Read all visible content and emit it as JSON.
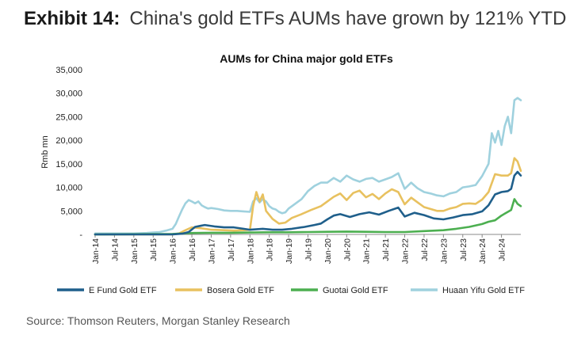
{
  "header": {
    "exhibit_label": "Exhibit 14:",
    "title": "China's gold ETFs AUMs have grown by 121% YTD"
  },
  "source": "Source: Thomson Reuters, Morgan Stanley Research",
  "chart_data": {
    "type": "line",
    "title": "AUMs for China major gold ETFs",
    "xlabel": "",
    "ylabel": "Rmb mn",
    "ylim": [
      0,
      35000
    ],
    "yticks": [
      0,
      5000,
      10000,
      15000,
      20000,
      25000,
      30000,
      35000
    ],
    "ytick_labels": [
      "-",
      "5,000",
      "10,000",
      "15,000",
      "20,000",
      "25,000",
      "30,000",
      "35,000"
    ],
    "x_tick_labels": [
      "Jan-14",
      "Jul-14",
      "Jan-15",
      "Jul-15",
      "Jan-16",
      "Jul-16",
      "Jan-17",
      "Jul-17",
      "Jan-18",
      "Jul-18",
      "Jan-19",
      "Jul-19",
      "Jan-20",
      "Jul-20",
      "Jan-21",
      "Jul-21",
      "Jan-22",
      "Jul-22",
      "Jan-23",
      "Jul-23",
      "Jan-24",
      "Jul-24"
    ],
    "x_range_months": [
      0,
      132
    ],
    "grid": false,
    "legend_position": "bottom",
    "series": [
      {
        "name": "E Fund Gold ETF",
        "color": "#1f5f8b",
        "points": [
          [
            0,
            0
          ],
          [
            24,
            0
          ],
          [
            27,
            150
          ],
          [
            29,
            500
          ],
          [
            31,
            1600
          ],
          [
            34,
            2000
          ],
          [
            37,
            1700
          ],
          [
            40,
            1500
          ],
          [
            43,
            1500
          ],
          [
            46,
            1200
          ],
          [
            48,
            1000
          ],
          [
            52,
            1200
          ],
          [
            55,
            1000
          ],
          [
            58,
            1000
          ],
          [
            61,
            1200
          ],
          [
            65,
            1600
          ],
          [
            68,
            2000
          ],
          [
            70,
            2300
          ],
          [
            72,
            3200
          ],
          [
            74,
            4000
          ],
          [
            76,
            4300
          ],
          [
            79,
            3700
          ],
          [
            82,
            4300
          ],
          [
            85,
            4700
          ],
          [
            88,
            4200
          ],
          [
            91,
            5000
          ],
          [
            94,
            5700
          ],
          [
            96,
            3800
          ],
          [
            99,
            4600
          ],
          [
            102,
            4100
          ],
          [
            105,
            3400
          ],
          [
            108,
            3200
          ],
          [
            111,
            3600
          ],
          [
            114,
            4100
          ],
          [
            117,
            4300
          ],
          [
            120,
            4900
          ],
          [
            122,
            6200
          ],
          [
            124,
            8500
          ],
          [
            126,
            9000
          ],
          [
            128,
            9200
          ],
          [
            129,
            9700
          ],
          [
            130,
            12500
          ],
          [
            131,
            13300
          ],
          [
            132,
            12500
          ]
        ]
      },
      {
        "name": "Bosera Gold ETF",
        "color": "#e8c15f",
        "points": [
          [
            0,
            0
          ],
          [
            24,
            0
          ],
          [
            26,
            200
          ],
          [
            28,
            900
          ],
          [
            30,
            1500
          ],
          [
            33,
            1300
          ],
          [
            36,
            1000
          ],
          [
            40,
            900
          ],
          [
            43,
            800
          ],
          [
            46,
            900
          ],
          [
            48,
            1000
          ],
          [
            49,
            6000
          ],
          [
            50,
            9000
          ],
          [
            51,
            7000
          ],
          [
            52,
            8500
          ],
          [
            53,
            5000
          ],
          [
            55,
            3300
          ],
          [
            57,
            2300
          ],
          [
            59,
            2500
          ],
          [
            61,
            3500
          ],
          [
            64,
            4300
          ],
          [
            67,
            5200
          ],
          [
            70,
            6000
          ],
          [
            72,
            7000
          ],
          [
            74,
            8000
          ],
          [
            76,
            8700
          ],
          [
            78,
            7300
          ],
          [
            80,
            8800
          ],
          [
            82,
            9300
          ],
          [
            84,
            7900
          ],
          [
            86,
            8600
          ],
          [
            88,
            7500
          ],
          [
            90,
            8700
          ],
          [
            92,
            9600
          ],
          [
            94,
            9000
          ],
          [
            96,
            6400
          ],
          [
            98,
            7800
          ],
          [
            100,
            6800
          ],
          [
            102,
            5800
          ],
          [
            104,
            5400
          ],
          [
            106,
            5000
          ],
          [
            108,
            5000
          ],
          [
            110,
            5500
          ],
          [
            112,
            5800
          ],
          [
            114,
            6500
          ],
          [
            116,
            6600
          ],
          [
            118,
            6500
          ],
          [
            120,
            7400
          ],
          [
            122,
            9000
          ],
          [
            124,
            12800
          ],
          [
            126,
            12500
          ],
          [
            128,
            12500
          ],
          [
            129,
            13000
          ],
          [
            130,
            16200
          ],
          [
            131,
            15500
          ],
          [
            132,
            13500
          ]
        ]
      },
      {
        "name": "Guotai Gold ETF",
        "color": "#4caf50",
        "points": [
          [
            0,
            0
          ],
          [
            24,
            100
          ],
          [
            30,
            300
          ],
          [
            36,
            350
          ],
          [
            42,
            350
          ],
          [
            48,
            400
          ],
          [
            54,
            450
          ],
          [
            60,
            450
          ],
          [
            66,
            500
          ],
          [
            72,
            550
          ],
          [
            78,
            600
          ],
          [
            84,
            550
          ],
          [
            90,
            500
          ],
          [
            96,
            500
          ],
          [
            102,
            700
          ],
          [
            108,
            900
          ],
          [
            112,
            1200
          ],
          [
            116,
            1600
          ],
          [
            120,
            2200
          ],
          [
            122,
            2700
          ],
          [
            124,
            3000
          ],
          [
            126,
            4000
          ],
          [
            128,
            4800
          ],
          [
            129,
            5200
          ],
          [
            130,
            7500
          ],
          [
            131,
            6500
          ],
          [
            132,
            6000
          ]
        ]
      },
      {
        "name": "Huaan Yifu Gold ETF",
        "color": "#9fd1de",
        "points": [
          [
            0,
            200
          ],
          [
            6,
            200
          ],
          [
            12,
            200
          ],
          [
            16,
            300
          ],
          [
            18,
            400
          ],
          [
            20,
            500
          ],
          [
            22,
            800
          ],
          [
            24,
            1200
          ],
          [
            25,
            2200
          ],
          [
            26,
            3800
          ],
          [
            27,
            5300
          ],
          [
            28,
            6600
          ],
          [
            29,
            7300
          ],
          [
            30,
            7000
          ],
          [
            31,
            6600
          ],
          [
            32,
            7000
          ],
          [
            33,
            6200
          ],
          [
            34,
            5800
          ],
          [
            35,
            5500
          ],
          [
            36,
            5600
          ],
          [
            38,
            5400
          ],
          [
            40,
            5100
          ],
          [
            42,
            5000
          ],
          [
            44,
            5000
          ],
          [
            46,
            4900
          ],
          [
            48,
            4800
          ],
          [
            49,
            7000
          ],
          [
            50,
            7700
          ],
          [
            51,
            6800
          ],
          [
            52,
            7500
          ],
          [
            53,
            7000
          ],
          [
            54,
            6000
          ],
          [
            55,
            5500
          ],
          [
            56,
            5300
          ],
          [
            57,
            4800
          ],
          [
            58,
            4500
          ],
          [
            59,
            4700
          ],
          [
            60,
            5500
          ],
          [
            62,
            6500
          ],
          [
            64,
            7500
          ],
          [
            66,
            9200
          ],
          [
            68,
            10300
          ],
          [
            70,
            11000
          ],
          [
            72,
            11000
          ],
          [
            74,
            12000
          ],
          [
            76,
            11200
          ],
          [
            78,
            12500
          ],
          [
            80,
            11700
          ],
          [
            82,
            11200
          ],
          [
            84,
            11800
          ],
          [
            86,
            12000
          ],
          [
            88,
            11200
          ],
          [
            90,
            11700
          ],
          [
            92,
            12200
          ],
          [
            94,
            13000
          ],
          [
            96,
            9700
          ],
          [
            98,
            11000
          ],
          [
            100,
            9800
          ],
          [
            102,
            9000
          ],
          [
            104,
            8700
          ],
          [
            106,
            8300
          ],
          [
            108,
            8100
          ],
          [
            110,
            8700
          ],
          [
            112,
            9000
          ],
          [
            114,
            10000
          ],
          [
            116,
            10200
          ],
          [
            118,
            10500
          ],
          [
            120,
            12400
          ],
          [
            122,
            15000
          ],
          [
            123,
            21500
          ],
          [
            124,
            19500
          ],
          [
            125,
            22000
          ],
          [
            126,
            19000
          ],
          [
            127,
            23000
          ],
          [
            128,
            25000
          ],
          [
            129,
            21500
          ],
          [
            130,
            28500
          ],
          [
            131,
            29000
          ],
          [
            132,
            28500
          ]
        ]
      }
    ]
  }
}
